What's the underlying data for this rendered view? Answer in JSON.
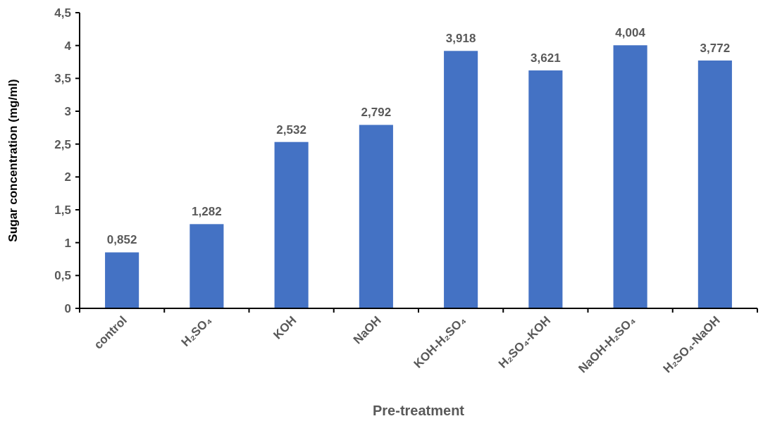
{
  "chart_data": {
    "type": "bar",
    "xlabel": "Pre-treatment",
    "ylabel": "Sugar concentration (mg/ml)",
    "categories": [
      "control",
      "H₂SO₄",
      "KOH",
      "NaOH",
      "KOH-H₂SO₄",
      "H₂SO₄-KOH",
      "NaOH-H₂SO₄",
      "H₂SO₄-NaOH"
    ],
    "values": [
      0.852,
      1.282,
      2.532,
      2.792,
      3.918,
      3.621,
      4.004,
      3.772
    ],
    "value_labels": [
      "0,852",
      "1,282",
      "2,532",
      "2,792",
      "3,918",
      "3,621",
      "4,004",
      "3,772"
    ],
    "color": "#4472c4",
    "ylim": [
      0,
      4.5
    ],
    "yticks": [
      0,
      {
        "value": 0.5,
        "label": "0,5"
      },
      1,
      {
        "value": 1.5,
        "label": "1,5"
      },
      2,
      {
        "value": 2.5,
        "label": "2,5"
      },
      3,
      {
        "value": 3.5,
        "label": "3,5"
      },
      4,
      {
        "value": 4.5,
        "label": "4,5"
      }
    ],
    "grid": false
  }
}
